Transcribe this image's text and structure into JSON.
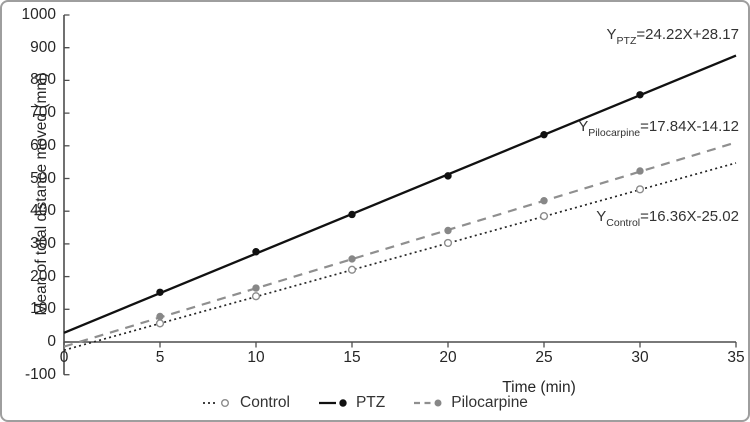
{
  "chart_data": {
    "type": "scatter",
    "x_title": "Time (min)",
    "y_title": "Mean of total distance moved (mm)",
    "x_range": [
      0,
      35
    ],
    "y_range": [
      -100,
      1000
    ],
    "x_ticks": [
      0,
      5,
      10,
      15,
      20,
      25,
      30,
      35
    ],
    "y_ticks": [
      1000,
      900,
      800,
      700,
      600,
      500,
      400,
      300,
      200,
      100,
      0,
      -100
    ],
    "grid": false,
    "legend_position": "bottom",
    "points_x": [
      5,
      10,
      15,
      20,
      25,
      30
    ],
    "series": [
      {
        "name": "Control",
        "values": [
          57,
          140,
          221,
          303,
          385,
          467
        ],
        "fit": {
          "slope": 16.36,
          "intercept": -25.02
        },
        "equation": {
          "base": "Y",
          "sub": "Control",
          "expr": "=16.36X-25.02"
        },
        "line_style": "dotted",
        "line_color": "#262626",
        "marker": "open-circle",
        "marker_color": "#8c8c8c"
      },
      {
        "name": "PTZ",
        "values": [
          152,
          276,
          390,
          508,
          634,
          756
        ],
        "fit": {
          "slope": 24.22,
          "intercept": 28.17
        },
        "equation": {
          "base": "Y",
          "sub": "PTZ",
          "expr": "=24.22X+28.17"
        },
        "line_style": "solid",
        "line_color": "#111111",
        "marker": "filled-circle",
        "marker_color": "#111111"
      },
      {
        "name": "Pilocarpine",
        "values": [
          78,
          165,
          254,
          341,
          432,
          523
        ],
        "fit": {
          "slope": 17.84,
          "intercept": -14.12
        },
        "equation": {
          "base": "Y",
          "sub": "Pilocarpine",
          "expr": "=17.84X-14.12"
        },
        "line_style": "dashed",
        "line_color": "#8f8f8f",
        "marker": "filled-circle",
        "marker_color": "#878787"
      }
    ],
    "axis_color": "#4d4d4d"
  }
}
